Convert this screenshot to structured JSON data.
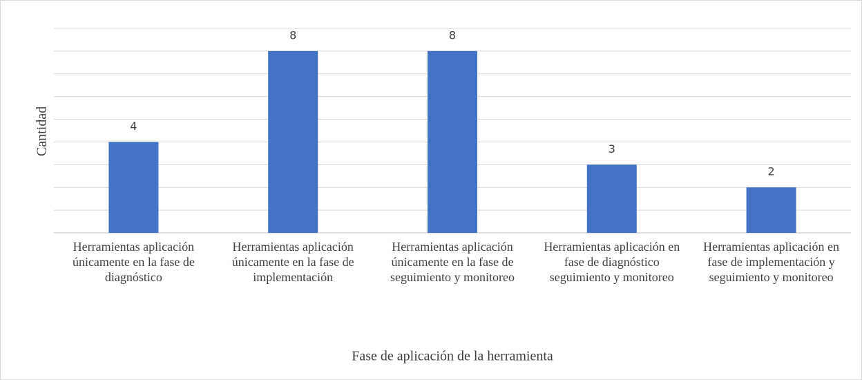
{
  "chart_data": {
    "type": "bar",
    "categories": [
      "Herramientas aplicación únicamente en la fase de diagnóstico",
      "Herramientas aplicación únicamente en la fase de implementación",
      "Herramientas aplicación únicamente en la fase de seguimiento y monitoreo",
      "Herramientas aplicación en fase de diagnóstico seguimiento y monitoreo",
      "Herramientas aplicación en fase de implementación y seguimiento y monitoreo"
    ],
    "values": [
      4,
      8,
      8,
      3,
      2
    ],
    "color": "#4472c4",
    "xlabel": "Fase de aplicación de la herramienta",
    "ylabel": "Cantidad",
    "ylim": [
      0,
      9
    ],
    "yticks": [
      0,
      1,
      2,
      3,
      4,
      5,
      6,
      7,
      8,
      9
    ],
    "grid": true
  }
}
